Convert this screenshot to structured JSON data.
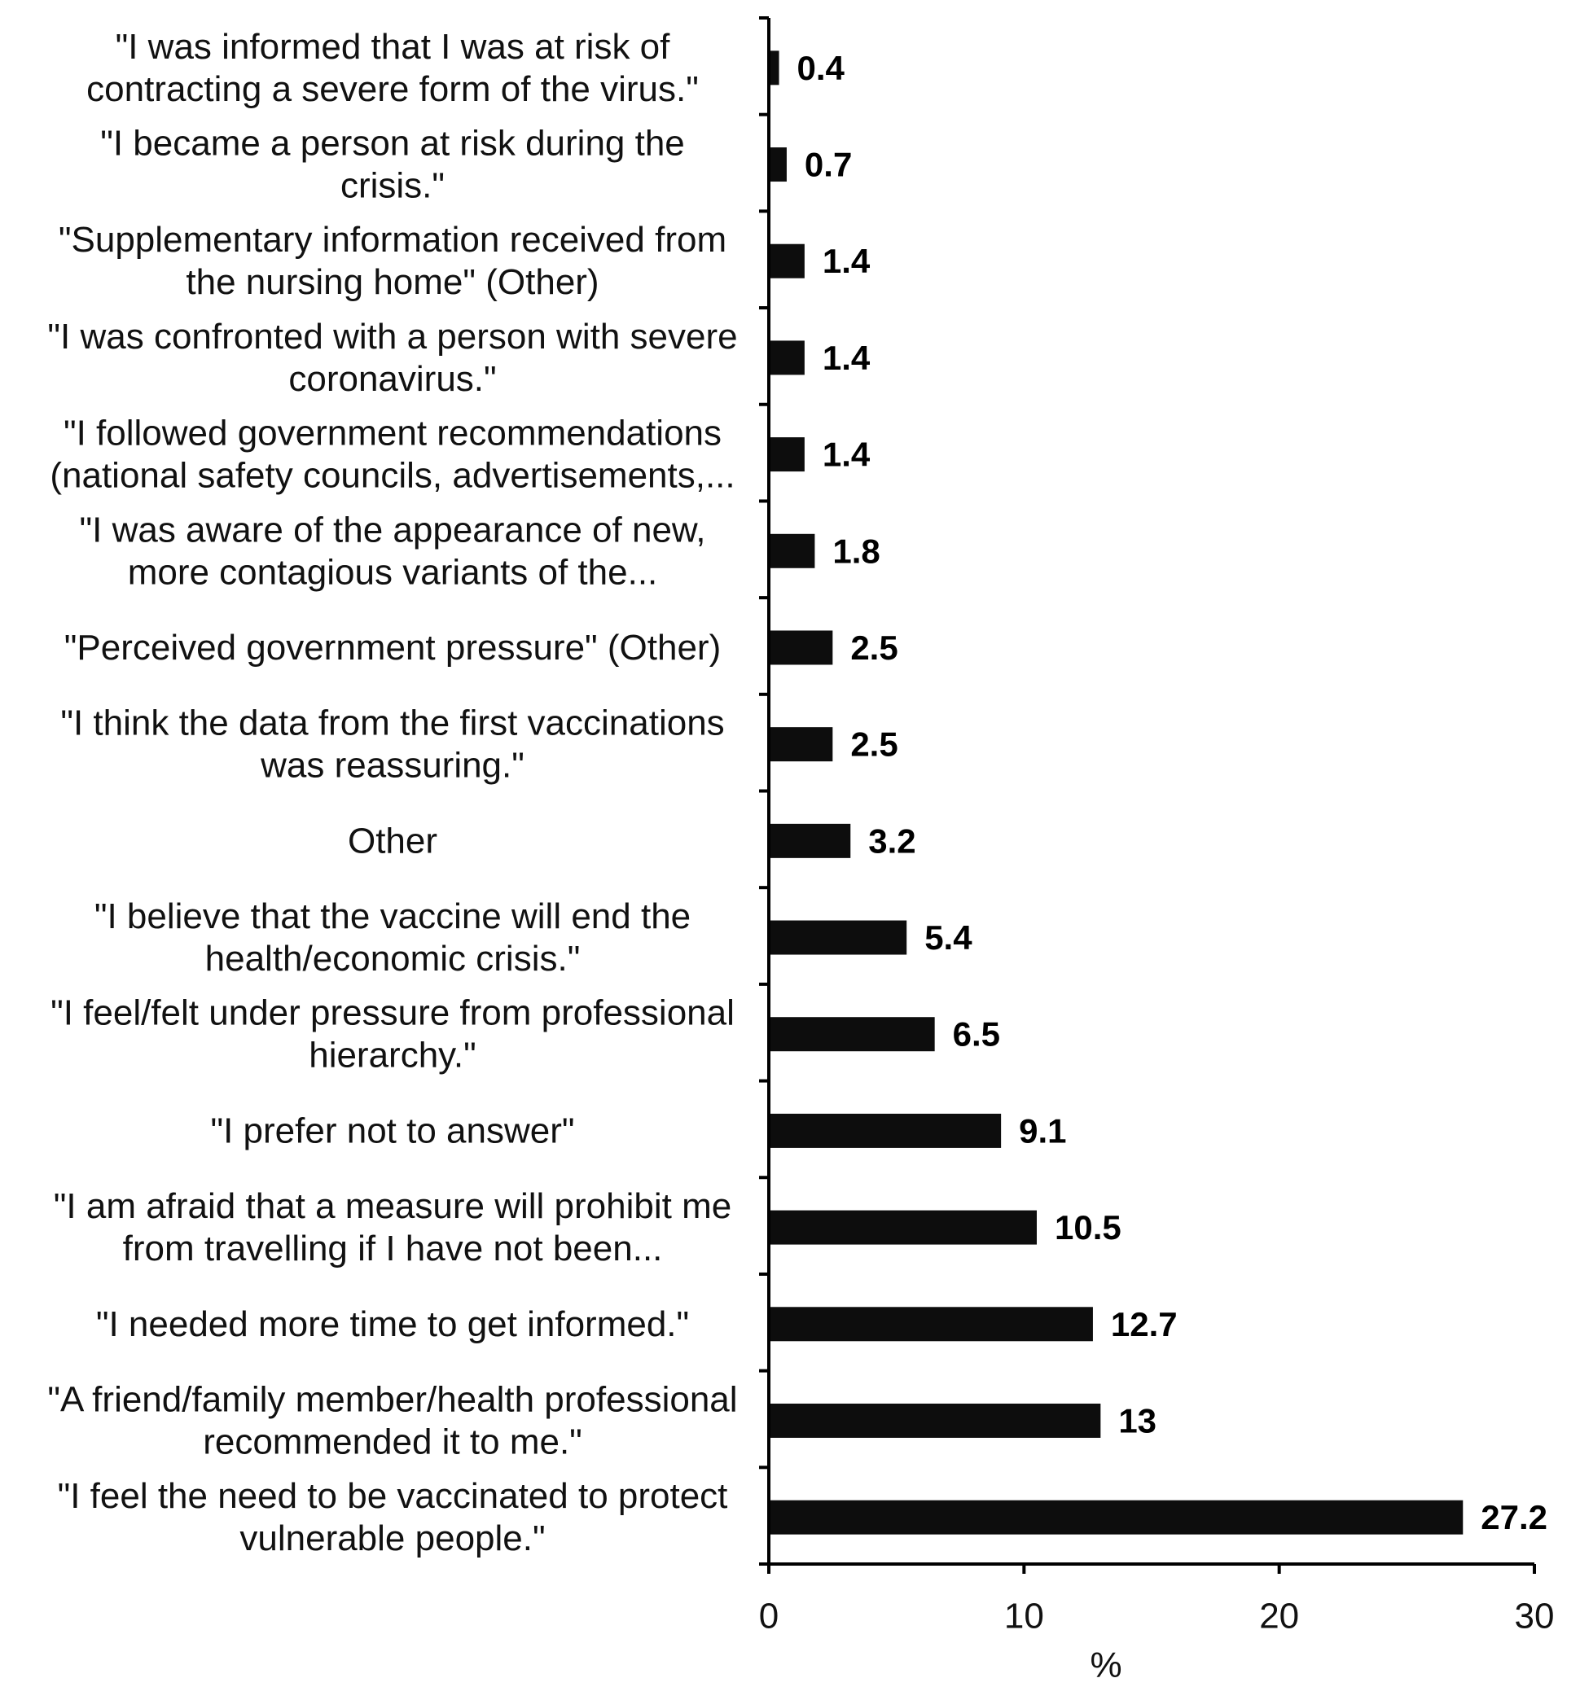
{
  "chart_data": {
    "type": "bar",
    "orientation": "horizontal",
    "xlabel": "%",
    "xlim": [
      0,
      30
    ],
    "xticks": [
      0,
      10,
      20,
      30
    ],
    "grid": false,
    "bar_color": "#0d0d0d",
    "categories": [
      {
        "lines": [
          "\"I was informed that I was at risk of",
          "contracting a severe form of the virus.\""
        ],
        "value": 0.4,
        "value_label": "0.4"
      },
      {
        "lines": [
          "\"I became a person at risk during the",
          "crisis.\""
        ],
        "value": 0.7,
        "value_label": "0.7"
      },
      {
        "lines": [
          "\"Supplementary information received from",
          "the nursing home\" (Other)"
        ],
        "value": 1.4,
        "value_label": "1.4"
      },
      {
        "lines": [
          "\"I was confronted with a person with severe",
          "coronavirus.\""
        ],
        "value": 1.4,
        "value_label": "1.4"
      },
      {
        "lines": [
          "\"I followed government recommendations",
          "(national safety councils, advertisements,..."
        ],
        "value": 1.4,
        "value_label": "1.4"
      },
      {
        "lines": [
          "\"I was aware of the appearance of new,",
          "more contagious variants of the..."
        ],
        "value": 1.8,
        "value_label": "1.8"
      },
      {
        "lines": [
          "\"Perceived government pressure\" (Other)"
        ],
        "value": 2.5,
        "value_label": "2.5"
      },
      {
        "lines": [
          "\"I think the data from the first vaccinations",
          "was reassuring.\""
        ],
        "value": 2.5,
        "value_label": "2.5"
      },
      {
        "lines": [
          "Other"
        ],
        "value": 3.2,
        "value_label": "3.2"
      },
      {
        "lines": [
          "\"I believe that the vaccine will end the",
          "health/economic crisis.\""
        ],
        "value": 5.4,
        "value_label": "5.4"
      },
      {
        "lines": [
          "\"I feel/felt under pressure from professional",
          "hierarchy.\""
        ],
        "value": 6.5,
        "value_label": "6.5"
      },
      {
        "lines": [
          "\"I prefer not to answer\""
        ],
        "value": 9.1,
        "value_label": "9.1"
      },
      {
        "lines": [
          "\"I am afraid that a measure will prohibit me",
          "from travelling if I have not been..."
        ],
        "value": 10.5,
        "value_label": "10.5"
      },
      {
        "lines": [
          "\"I needed more time to get informed.\""
        ],
        "value": 12.7,
        "value_label": "12.7"
      },
      {
        "lines": [
          "\"A friend/family member/health professional",
          "recommended it to me.\""
        ],
        "value": 13,
        "value_label": "13"
      },
      {
        "lines": [
          "\"I feel the need to be vaccinated to protect",
          "vulnerable people.\""
        ],
        "value": 27.2,
        "value_label": "27.2"
      }
    ]
  }
}
